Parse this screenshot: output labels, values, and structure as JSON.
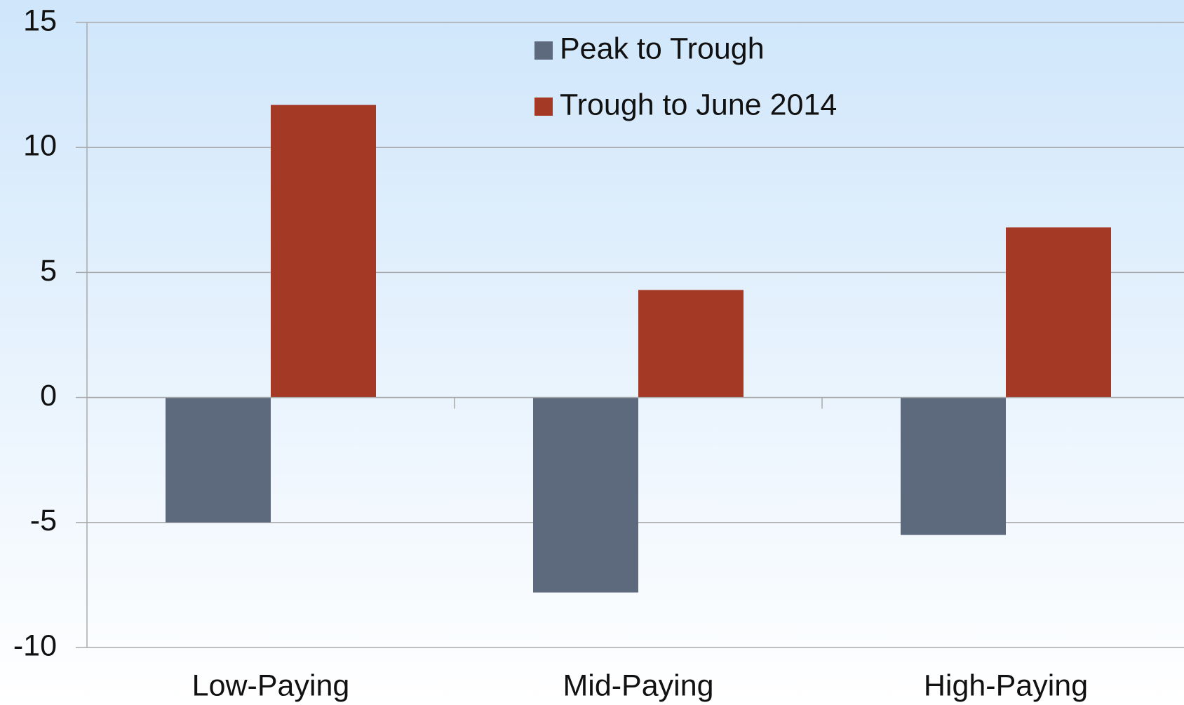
{
  "chart_data": {
    "type": "bar",
    "categories": [
      "Low-Paying",
      "Mid-Paying",
      "High-Paying"
    ],
    "series": [
      {
        "name": "Peak to Trough",
        "color": "#5d6a7d",
        "values": [
          -5.0,
          -7.8,
          -5.5
        ]
      },
      {
        "name": "Trough to June 2014",
        "color": "#a43926",
        "values": [
          11.7,
          4.3,
          6.8
        ]
      }
    ],
    "ylim": [
      -10,
      15
    ],
    "yticks": [
      -10,
      -5,
      0,
      5,
      10,
      15
    ],
    "grid": true,
    "legend": "top"
  }
}
